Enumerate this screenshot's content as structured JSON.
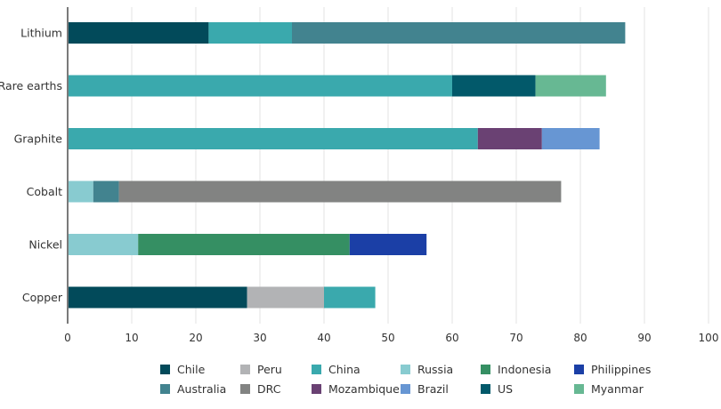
{
  "chart_data": {
    "type": "bar",
    "orientation": "horizontal",
    "stacked": true,
    "title": "",
    "xlabel": "",
    "ylabel": "",
    "xlim": [
      0,
      100
    ],
    "xticks": [
      "0",
      "10",
      "20",
      "30",
      "40",
      "50",
      "60",
      "70",
      "80",
      "90",
      "100"
    ],
    "grid": true,
    "legend_position": "bottom",
    "categories": [
      "Lithium",
      "Rare earths",
      "Graphite",
      "Cobalt",
      "Nickel",
      "Copper"
    ],
    "bars": [
      {
        "category": "Lithium",
        "segments": [
          {
            "country": "Chile",
            "value": 22
          },
          {
            "country": "China",
            "value": 13
          },
          {
            "country": "Australia",
            "value": 52
          }
        ]
      },
      {
        "category": "Rare earths",
        "segments": [
          {
            "country": "China",
            "value": 60
          },
          {
            "country": "US",
            "value": 13
          },
          {
            "country": "Myanmar",
            "value": 11
          }
        ]
      },
      {
        "category": "Graphite",
        "segments": [
          {
            "country": "China",
            "value": 64
          },
          {
            "country": "Mozambique",
            "value": 10
          },
          {
            "country": "Brazil",
            "value": 9
          }
        ]
      },
      {
        "category": "Cobalt",
        "segments": [
          {
            "country": "Russia",
            "value": 4
          },
          {
            "country": "Australia",
            "value": 4
          },
          {
            "country": "DRC",
            "value": 69
          }
        ]
      },
      {
        "category": "Nickel",
        "segments": [
          {
            "country": "Russia",
            "value": 11
          },
          {
            "country": "Indonesia",
            "value": 33
          },
          {
            "country": "Philippines",
            "value": 12
          }
        ]
      },
      {
        "category": "Copper",
        "segments": [
          {
            "country": "Chile",
            "value": 28
          },
          {
            "country": "Peru",
            "value": 12
          },
          {
            "country": "China",
            "value": 8
          }
        ]
      }
    ],
    "legend": [
      {
        "name": "Chile",
        "color": "#024a5a"
      },
      {
        "name": "Peru",
        "color": "#b2b3b5"
      },
      {
        "name": "China",
        "color": "#3aa9ad"
      },
      {
        "name": "Russia",
        "color": "#88cbd0"
      },
      {
        "name": "Indonesia",
        "color": "#358f63"
      },
      {
        "name": "Philippines",
        "color": "#1b3fa6"
      },
      {
        "name": "Australia",
        "color": "#42838f"
      },
      {
        "name": "DRC",
        "color": "#828382"
      },
      {
        "name": "Mozambique",
        "color": "#6a4173"
      },
      {
        "name": "Brazil",
        "color": "#6796d3"
      },
      {
        "name": "US",
        "color": "#02596a"
      },
      {
        "name": "Myanmar",
        "color": "#67b893"
      }
    ]
  }
}
